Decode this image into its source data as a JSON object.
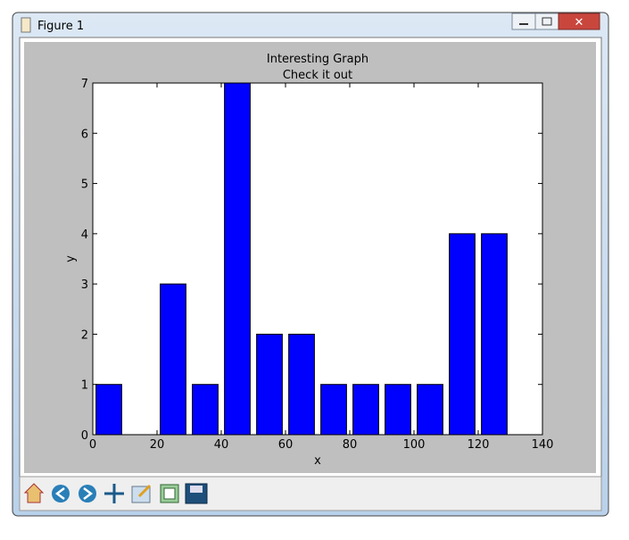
{
  "window": {
    "title": "Figure 1"
  },
  "chart_data": {
    "type": "histogram",
    "title": "Interesting Graph",
    "subtitle": "Check it out",
    "x_label": "x",
    "y_label": "y",
    "bins": [
      0,
      10,
      20,
      30,
      40,
      50,
      60,
      70,
      80,
      90,
      100,
      110,
      120,
      130
    ],
    "values": [
      1,
      0,
      3,
      1,
      7,
      2,
      2,
      1,
      1,
      1,
      1,
      4,
      4
    ],
    "color": "#0000ff",
    "xlim": [
      0,
      140
    ],
    "xticks": [
      0,
      20,
      40,
      60,
      80,
      100,
      120,
      140
    ],
    "ylim": [
      0,
      7
    ],
    "yticks": [
      0,
      1,
      2,
      3,
      4,
      5,
      6,
      7
    ]
  }
}
